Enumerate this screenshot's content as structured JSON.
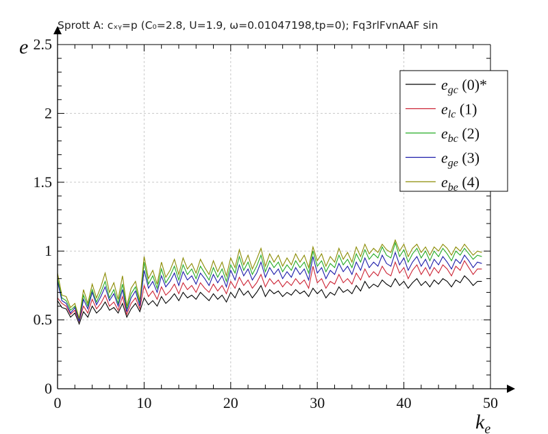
{
  "title": "Sprott A: cₓᵧ=p (C₀=2.8, U=1.9, ω=0.01047198,tp=0); Fq3rlFvnAAF sin",
  "chart_data": {
    "type": "line",
    "title": "Sprott A: cₓᵧ=p (C₀=2.8, U=1.9, ω=0.01047198,tp=0); Fq3rlFvnAAF sin",
    "xlabel": "k_e",
    "ylabel": "e",
    "xlim": [
      0,
      50
    ],
    "ylim": [
      0,
      2.5
    ],
    "xticks": [
      "0",
      "10",
      "20",
      "30",
      "40",
      "50"
    ],
    "yticks": [
      "0",
      "0.5",
      "1",
      "1.5",
      "2",
      "2.5"
    ],
    "grid": true,
    "legend_position": "top-right",
    "x": [
      0,
      0.5,
      1,
      1.5,
      2,
      2.5,
      3,
      3.5,
      4,
      4.5,
      5,
      5.5,
      6,
      6.5,
      7,
      7.5,
      8,
      8.5,
      9,
      9.5,
      10,
      10.5,
      11,
      11.5,
      12,
      12.5,
      13,
      13.5,
      14,
      14.5,
      15,
      15.5,
      16,
      16.5,
      17,
      17.5,
      18,
      18.5,
      19,
      19.5,
      20,
      20.5,
      21,
      21.5,
      22,
      22.5,
      23,
      23.5,
      24,
      24.5,
      25,
      25.5,
      26,
      26.5,
      27,
      27.5,
      28,
      28.5,
      29,
      29.5,
      30,
      30.5,
      31,
      31.5,
      32,
      32.5,
      33,
      33.5,
      34,
      34.5,
      35,
      35.5,
      36,
      36.5,
      37,
      37.5,
      38,
      38.5,
      39,
      39.5,
      40,
      40.5,
      41,
      41.5,
      42,
      42.5,
      43,
      43.5,
      44,
      44.5,
      45,
      45.5,
      46,
      46.5,
      47,
      47.5,
      48,
      48.5,
      49
    ],
    "series": [
      {
        "name": "e_gc (0)*",
        "color": "#000000",
        "values": [
          0.64,
          0.59,
          0.58,
          0.52,
          0.55,
          0.47,
          0.56,
          0.52,
          0.6,
          0.55,
          0.58,
          0.63,
          0.57,
          0.59,
          0.55,
          0.62,
          0.52,
          0.58,
          0.62,
          0.56,
          0.66,
          0.61,
          0.64,
          0.6,
          0.67,
          0.62,
          0.65,
          0.69,
          0.64,
          0.7,
          0.66,
          0.68,
          0.65,
          0.7,
          0.67,
          0.64,
          0.69,
          0.65,
          0.68,
          0.63,
          0.7,
          0.66,
          0.73,
          0.68,
          0.71,
          0.66,
          0.7,
          0.75,
          0.67,
          0.72,
          0.69,
          0.71,
          0.67,
          0.7,
          0.68,
          0.72,
          0.69,
          0.71,
          0.67,
          0.73,
          0.69,
          0.72,
          0.66,
          0.7,
          0.68,
          0.74,
          0.7,
          0.72,
          0.69,
          0.75,
          0.71,
          0.78,
          0.73,
          0.76,
          0.74,
          0.79,
          0.76,
          0.74,
          0.8,
          0.75,
          0.78,
          0.73,
          0.77,
          0.8,
          0.75,
          0.78,
          0.74,
          0.79,
          0.76,
          0.8,
          0.78,
          0.74,
          0.79,
          0.77,
          0.82,
          0.79,
          0.75,
          0.78,
          0.78
        ]
      },
      {
        "name": "e_lc (1)",
        "color": "#cc2233",
        "values": [
          0.66,
          0.62,
          0.6,
          0.54,
          0.57,
          0.49,
          0.6,
          0.55,
          0.65,
          0.58,
          0.62,
          0.68,
          0.6,
          0.63,
          0.57,
          0.67,
          0.54,
          0.62,
          0.66,
          0.58,
          0.75,
          0.67,
          0.71,
          0.65,
          0.74,
          0.68,
          0.71,
          0.76,
          0.69,
          0.77,
          0.72,
          0.75,
          0.7,
          0.77,
          0.73,
          0.7,
          0.76,
          0.71,
          0.75,
          0.69,
          0.78,
          0.73,
          0.81,
          0.75,
          0.79,
          0.73,
          0.77,
          0.83,
          0.74,
          0.8,
          0.76,
          0.79,
          0.74,
          0.78,
          0.75,
          0.8,
          0.76,
          0.79,
          0.73,
          0.89,
          0.77,
          0.8,
          0.73,
          0.78,
          0.76,
          0.83,
          0.77,
          0.8,
          0.76,
          0.84,
          0.79,
          0.87,
          0.81,
          0.85,
          0.82,
          0.89,
          0.84,
          0.82,
          0.92,
          0.84,
          0.88,
          0.8,
          0.86,
          0.9,
          0.83,
          0.88,
          0.82,
          0.88,
          0.84,
          0.9,
          0.87,
          0.82,
          0.89,
          0.86,
          0.93,
          0.88,
          0.83,
          0.87,
          0.87
        ]
      },
      {
        "name": "e_bc (2)",
        "color": "#22aa22",
        "values": [
          0.8,
          0.66,
          0.64,
          0.57,
          0.6,
          0.5,
          0.68,
          0.6,
          0.72,
          0.63,
          0.7,
          0.78,
          0.66,
          0.72,
          0.62,
          0.76,
          0.58,
          0.69,
          0.74,
          0.62,
          0.92,
          0.76,
          0.82,
          0.73,
          0.87,
          0.77,
          0.82,
          0.89,
          0.79,
          0.9,
          0.83,
          0.87,
          0.8,
          0.89,
          0.84,
          0.79,
          0.88,
          0.81,
          0.87,
          0.78,
          0.9,
          0.84,
          0.96,
          0.86,
          0.92,
          0.83,
          0.89,
          0.97,
          0.85,
          0.93,
          0.88,
          0.92,
          0.85,
          0.9,
          0.86,
          0.93,
          0.88,
          0.92,
          0.84,
          1.0,
          0.89,
          0.93,
          0.85,
          0.91,
          0.88,
          0.97,
          0.9,
          0.94,
          0.88,
          0.98,
          0.92,
          1.01,
          0.94,
          0.98,
          0.95,
          1.03,
          0.97,
          0.95,
          1.06,
          0.96,
          1.01,
          0.92,
          0.98,
          1.02,
          0.95,
          1.0,
          0.93,
          1.0,
          0.96,
          1.02,
          0.98,
          0.93,
          1.0,
          0.97,
          1.02,
          0.98,
          0.94,
          0.97,
          0.96
        ]
      },
      {
        "name": "e_ge (3)",
        "color": "#1a1aa8",
        "values": [
          0.78,
          0.64,
          0.62,
          0.55,
          0.59,
          0.49,
          0.65,
          0.58,
          0.7,
          0.61,
          0.67,
          0.74,
          0.64,
          0.69,
          0.6,
          0.72,
          0.56,
          0.66,
          0.71,
          0.6,
          0.86,
          0.73,
          0.78,
          0.7,
          0.82,
          0.74,
          0.78,
          0.84,
          0.75,
          0.85,
          0.79,
          0.82,
          0.76,
          0.84,
          0.8,
          0.75,
          0.83,
          0.77,
          0.82,
          0.74,
          0.86,
          0.79,
          0.9,
          0.82,
          0.87,
          0.79,
          0.84,
          0.92,
          0.81,
          0.88,
          0.83,
          0.87,
          0.8,
          0.85,
          0.81,
          0.88,
          0.83,
          0.87,
          0.79,
          0.96,
          0.84,
          0.88,
          0.8,
          0.86,
          0.83,
          0.91,
          0.85,
          0.89,
          0.83,
          0.92,
          0.86,
          0.95,
          0.88,
          0.92,
          0.89,
          0.97,
          0.91,
          0.89,
          0.99,
          0.9,
          0.95,
          0.86,
          0.92,
          0.96,
          0.89,
          0.94,
          0.87,
          0.94,
          0.9,
          0.96,
          0.92,
          0.87,
          0.94,
          0.91,
          0.97,
          0.93,
          0.88,
          0.92,
          0.91
        ]
      },
      {
        "name": "e_be (4)",
        "color": "#8a8a00",
        "values": [
          0.84,
          0.68,
          0.67,
          0.59,
          0.62,
          0.51,
          0.72,
          0.62,
          0.76,
          0.66,
          0.74,
          0.84,
          0.7,
          0.77,
          0.65,
          0.82,
          0.6,
          0.73,
          0.78,
          0.64,
          0.96,
          0.8,
          0.86,
          0.76,
          0.92,
          0.81,
          0.86,
          0.94,
          0.83,
          0.95,
          0.87,
          0.91,
          0.84,
          0.94,
          0.88,
          0.83,
          0.93,
          0.85,
          0.92,
          0.82,
          0.95,
          0.88,
          1.01,
          0.9,
          0.97,
          0.87,
          0.94,
          1.02,
          0.89,
          0.98,
          0.92,
          0.97,
          0.89,
          0.95,
          0.9,
          0.98,
          0.92,
          0.97,
          0.88,
          1.03,
          0.93,
          0.98,
          0.89,
          0.96,
          0.92,
          1.02,
          0.94,
          0.99,
          0.92,
          1.03,
          0.96,
          1.05,
          0.98,
          1.02,
          0.99,
          1.05,
          1.01,
          0.99,
          1.08,
          1.0,
          1.05,
          0.96,
          1.02,
          1.05,
          0.99,
          1.03,
          0.97,
          1.03,
          1.0,
          1.05,
          1.02,
          0.97,
          1.03,
          1.0,
          1.05,
          1.01,
          0.97,
          1.0,
          0.99
        ]
      }
    ]
  }
}
